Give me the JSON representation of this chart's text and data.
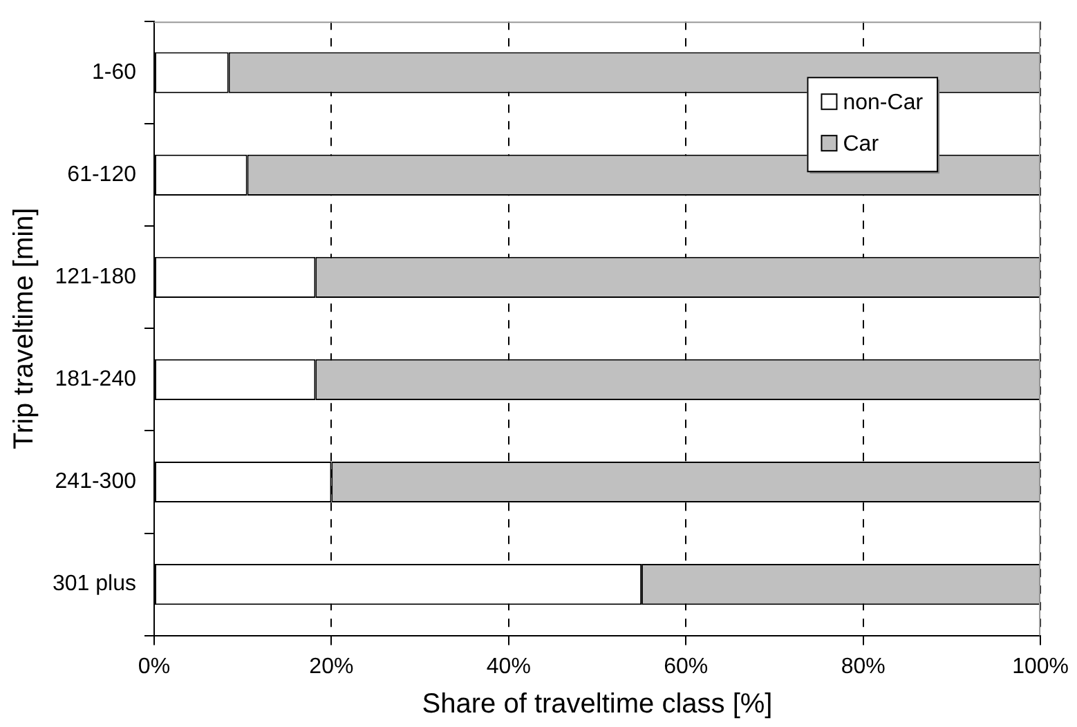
{
  "chart_data": {
    "type": "bar",
    "orientation": "horizontal",
    "stacked": true,
    "xlabel": "Share of traveltime class [%]",
    "ylabel": "Trip traveltime [min]",
    "categories": [
      "1-60",
      "61-120",
      "121-180",
      "181-240",
      "241-300",
      "301 plus"
    ],
    "series": [
      {
        "name": "non-Car",
        "color": "#ffffff",
        "values": [
          8.4,
          10.5,
          18.2,
          18.2,
          20,
          55
        ]
      },
      {
        "name": "Car",
        "color": "#c0c0c0",
        "values": [
          91.6,
          89.5,
          81.8,
          81.8,
          80,
          45
        ]
      }
    ],
    "xlim": [
      0,
      100
    ],
    "xticks": [
      {
        "value": 0,
        "label": "0%"
      },
      {
        "value": 20,
        "label": "20%"
      },
      {
        "value": 40,
        "label": "40%"
      },
      {
        "value": 60,
        "label": "60%"
      },
      {
        "value": 80,
        "label": "80%"
      },
      {
        "value": 100,
        "label": "100%"
      }
    ],
    "grid": "x",
    "legend": "top right"
  }
}
